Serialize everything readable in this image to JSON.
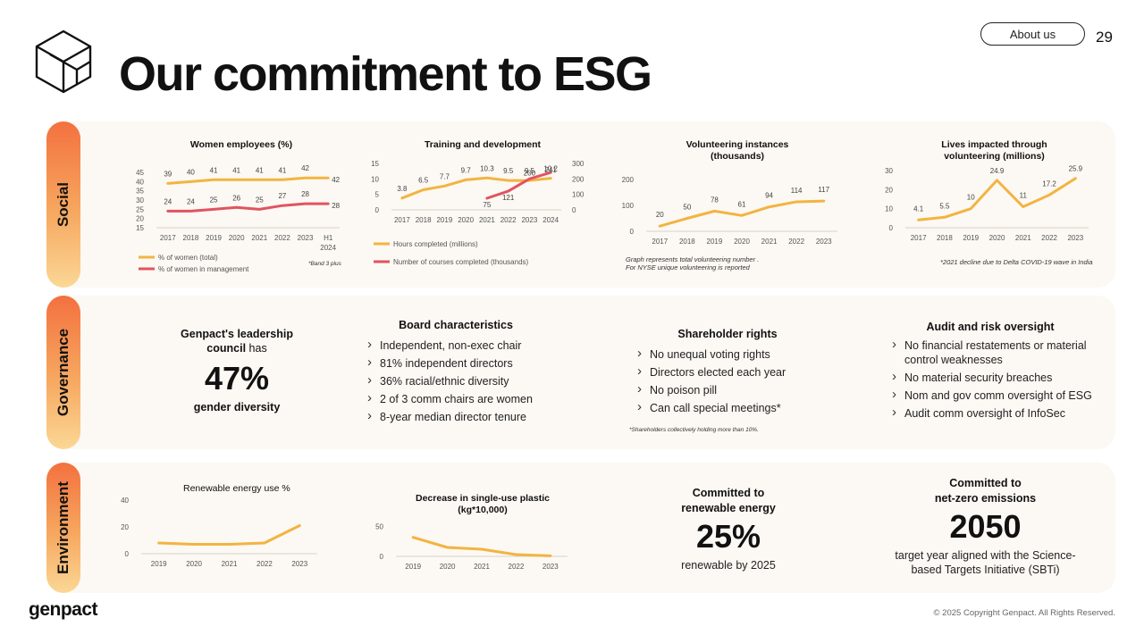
{
  "header": {
    "title": "Our commitment to ESG",
    "about_label": "About us",
    "page_number": "29"
  },
  "sections": {
    "social": "Social",
    "governance": "Governance",
    "environment": "Environment"
  },
  "social_notes": {
    "band": "*Band 3 plus",
    "volunteering": "Graph represents total volunteering number .\nFor NYSE unique volunteering is reported",
    "lives": "*2021 decline due to Delta COVID-19 wave in India"
  },
  "governance": {
    "leadership": {
      "line1": "Genpact's leadership",
      "line2_bold": "council",
      "line2_rest": " has",
      "value": "47%",
      "caption": "gender diversity"
    },
    "board": {
      "heading": "Board characteristics",
      "items": [
        "Independent, non-exec chair",
        "81% independent directors",
        "36% racial/ethnic diversity",
        "2 of 3 comm chairs are women",
        "8-year median director tenure"
      ]
    },
    "shareholder": {
      "heading": "Shareholder rights",
      "items": [
        "No unequal voting rights",
        "Directors elected each year",
        "No poison pill",
        "Can call special meetings*"
      ],
      "note": "*Shareholders collectively holding more than 10%."
    },
    "audit": {
      "heading": "Audit and risk oversight",
      "items": [
        "No financial restatements or material control weaknesses",
        "No material security breaches",
        "Nom and gov comm oversight of ESG",
        "Audit comm oversight of InfoSec"
      ]
    }
  },
  "environment": {
    "renewable": {
      "line1": "Committed to",
      "line2": "renewable energy",
      "value": "25%",
      "caption": "renewable by 2025"
    },
    "netzero": {
      "line1": "Committed to",
      "line2": "net-zero emissions",
      "value": "2050",
      "caption1": "target year aligned with the Science-",
      "caption2": "based Targets Initiative (SBTi)"
    }
  },
  "footer": {
    "copyright": "© 2025 Copyright Genpact. All Rights Reserved.",
    "logo": "genpact"
  },
  "colors": {
    "orange": "#f2b441",
    "red": "#e05460",
    "axis": "#d8d2ca",
    "text": "#555555"
  },
  "chart_data": [
    {
      "id": "women",
      "type": "line",
      "title": "Women employees (%)",
      "categories": [
        "2017",
        "2018",
        "2019",
        "2020",
        "2021",
        "2022",
        "2023",
        "H1\n2024"
      ],
      "ylim": [
        15,
        45
      ],
      "yticks": [
        15,
        20,
        25,
        30,
        35,
        40,
        45
      ],
      "series": [
        {
          "name": "% of women (total)",
          "color": "#f2b441",
          "values": [
            39,
            40,
            41,
            41,
            41,
            41,
            42,
            42
          ]
        },
        {
          "name": "% of women in management",
          "color": "#e05460",
          "values": [
            24,
            24,
            25,
            26,
            25,
            27,
            28,
            28
          ]
        }
      ],
      "legend": "bottom-left"
    },
    {
      "id": "training",
      "type": "line",
      "title": "Training and development",
      "categories": [
        "2017",
        "2018",
        "2019",
        "2020",
        "2021",
        "2022",
        "2023",
        "2024"
      ],
      "ylim": [
        0,
        15
      ],
      "yticks": [
        0,
        5,
        10,
        15
      ],
      "y2lim": [
        0,
        300
      ],
      "y2ticks": [
        0,
        100,
        200,
        300
      ],
      "series": [
        {
          "name": "Hours completed (millions)",
          "color": "#f2b441",
          "axis": "left",
          "values": [
            3.8,
            6.5,
            7.7,
            9.7,
            10.3,
            9.5,
            9.5,
            10.2
          ]
        },
        {
          "name": "Number of courses completed (thousands)",
          "color": "#e05460",
          "axis": "right",
          "values": [
            null,
            null,
            null,
            null,
            75,
            121,
            200,
            241
          ]
        }
      ],
      "legend": "bottom-left"
    },
    {
      "id": "volunteering",
      "type": "line",
      "title": "Volunteering instances\n(thousands)",
      "categories": [
        "2017",
        "2018",
        "2019",
        "2020",
        "2021",
        "2022",
        "2023"
      ],
      "ylim": [
        0,
        200
      ],
      "yticks": [
        0,
        100,
        200
      ],
      "series": [
        {
          "color": "#f2b441",
          "values": [
            20,
            50,
            78,
            61,
            94,
            114,
            117
          ]
        }
      ]
    },
    {
      "id": "lives",
      "type": "line",
      "title": "Lives impacted through\nvolunteering (millions)",
      "categories": [
        "2017",
        "2018",
        "2019",
        "2020",
        "2021",
        "2022",
        "2023"
      ],
      "ylim": [
        0,
        30
      ],
      "yticks": [
        0,
        10,
        20,
        30
      ],
      "series": [
        {
          "color": "#f2b441",
          "values": [
            4.1,
            5.5,
            10,
            24.9,
            11,
            17.2,
            25.9
          ]
        }
      ]
    },
    {
      "id": "renewable",
      "type": "line",
      "title": "Renewable energy use %",
      "categories": [
        "2019",
        "2020",
        "2021",
        "2022",
        "2023"
      ],
      "ylim": [
        0,
        40
      ],
      "yticks": [
        0,
        20,
        40
      ],
      "series": [
        {
          "color": "#f2b441",
          "values": [
            8,
            7,
            7,
            8,
            21
          ]
        }
      ]
    },
    {
      "id": "plastic",
      "type": "line",
      "title": "Decrease in single-use plastic\n(kg*10,000)",
      "categories": [
        "2019",
        "2020",
        "2021",
        "2022",
        "2023"
      ],
      "ylim": [
        0,
        60
      ],
      "yticks": [
        0,
        50
      ],
      "series": [
        {
          "color": "#f2b441",
          "values": [
            32,
            15,
            12,
            3,
            1
          ]
        }
      ]
    }
  ]
}
